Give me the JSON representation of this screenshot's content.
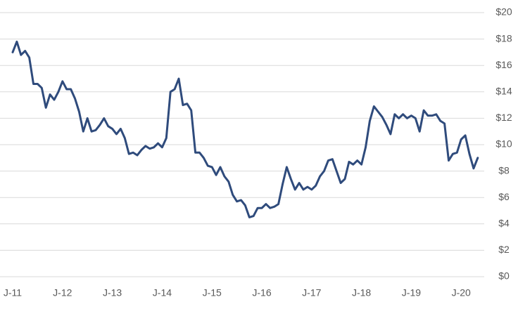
{
  "chart_data": {
    "type": "line",
    "categories": [
      "J-11",
      null,
      null,
      null,
      null,
      null,
      null,
      null,
      null,
      null,
      null,
      null,
      "J-12",
      null,
      null,
      null,
      null,
      null,
      null,
      null,
      null,
      null,
      null,
      null,
      "J-13",
      null,
      null,
      null,
      null,
      null,
      null,
      null,
      null,
      null,
      null,
      null,
      "J-14",
      null,
      null,
      null,
      null,
      null,
      null,
      null,
      null,
      null,
      null,
      null,
      "J-15",
      null,
      null,
      null,
      null,
      null,
      null,
      null,
      null,
      null,
      null,
      null,
      "J-16",
      null,
      null,
      null,
      null,
      null,
      null,
      null,
      null,
      null,
      null,
      null,
      "J-17",
      null,
      null,
      null,
      null,
      null,
      null,
      null,
      null,
      null,
      null,
      null,
      "J-18",
      null,
      null,
      null,
      null,
      null,
      null,
      null,
      null,
      null,
      null,
      null,
      "J-19",
      null,
      null,
      null,
      null,
      null,
      null,
      null,
      null,
      null,
      null,
      null,
      "J-20",
      null,
      null,
      null,
      null
    ],
    "values": [
      17.0,
      17.8,
      16.8,
      17.1,
      16.6,
      14.6,
      14.6,
      14.3,
      12.8,
      13.8,
      13.4,
      14.0,
      14.8,
      14.2,
      14.2,
      13.5,
      12.5,
      11.0,
      12.0,
      11.0,
      11.1,
      11.5,
      12.0,
      11.4,
      11.2,
      10.8,
      11.2,
      10.5,
      9.3,
      9.4,
      9.2,
      9.6,
      9.9,
      9.7,
      9.8,
      10.1,
      9.8,
      10.5,
      14.0,
      14.2,
      15.0,
      13.0,
      13.1,
      12.6,
      9.4,
      9.4,
      9.0,
      8.4,
      8.3,
      7.7,
      8.3,
      7.6,
      7.2,
      6.2,
      5.7,
      5.8,
      5.4,
      4.5,
      4.6,
      5.2,
      5.2,
      5.5,
      5.2,
      5.3,
      5.5,
      7.0,
      8.3,
      7.4,
      6.6,
      7.1,
      6.6,
      6.8,
      6.6,
      6.9,
      7.6,
      8.0,
      8.8,
      8.9,
      8.0,
      7.1,
      7.4,
      8.7,
      8.5,
      8.8,
      8.5,
      9.8,
      11.8,
      12.9,
      12.5,
      12.1,
      11.5,
      10.8,
      12.3,
      12.0,
      12.3,
      12.0,
      12.2,
      12.0,
      11.0,
      12.6,
      12.2,
      12.2,
      12.3,
      11.8,
      11.6,
      8.8,
      9.3,
      9.4,
      10.4,
      10.7,
      9.3,
      8.2,
      9.0
    ],
    "color": "#2f4b7c",
    "ylim": [
      0,
      20
    ],
    "yticks": [
      {
        "value": 0,
        "label": "$0"
      },
      {
        "value": 2,
        "label": "$2"
      },
      {
        "value": 4,
        "label": "$4"
      },
      {
        "value": 6,
        "label": "$6"
      },
      {
        "value": 8,
        "label": "$8"
      },
      {
        "value": 10,
        "label": "$10"
      },
      {
        "value": 12,
        "label": "$12"
      },
      {
        "value": 14,
        "label": "$14"
      },
      {
        "value": 16,
        "label": "$16"
      },
      {
        "value": 18,
        "label": "$18"
      },
      {
        "value": 20,
        "label": "$20"
      }
    ],
    "grid": true
  }
}
